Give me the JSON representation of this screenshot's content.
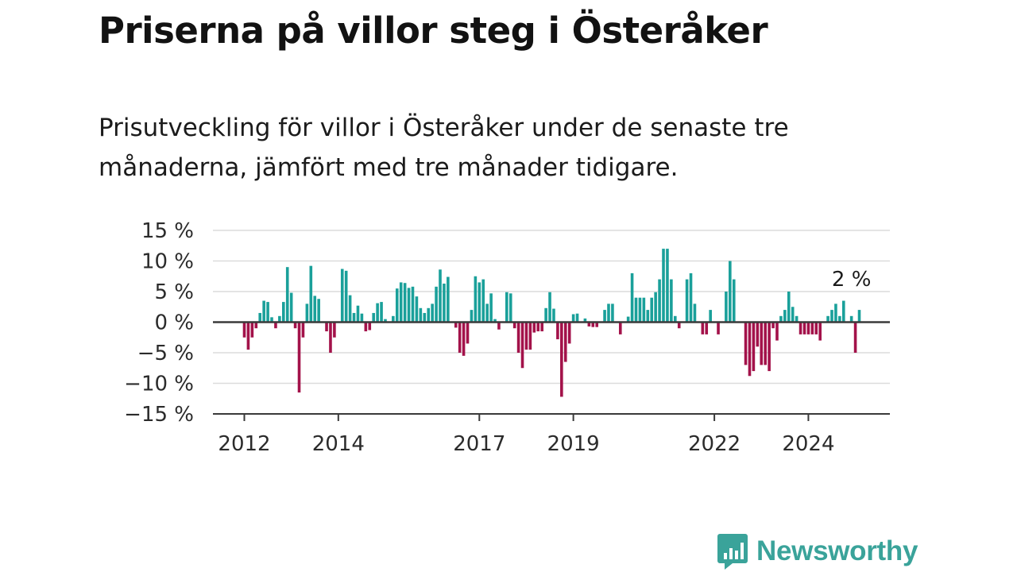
{
  "header": {
    "title": "Priserna på villor steg i Österåker",
    "subtitle": "Prisutveckling för villor i Österåker under de senaste tre månaderna, jämfört med tre månader tidigare."
  },
  "brand": {
    "name": "Newsworthy",
    "icon": "newsworthy-chat-bars-icon",
    "color": "#3aa39a"
  },
  "chart_data": {
    "type": "bar",
    "title": "",
    "xlabel": "",
    "ylabel": "",
    "ylim": [
      -15,
      15
    ],
    "y_ticks": [
      15,
      10,
      5,
      0,
      -5,
      -10,
      -15
    ],
    "y_tick_labels": [
      "15 %",
      "10 %",
      "5 %",
      "0 %",
      "−5 %",
      "−10 %",
      "−15 %"
    ],
    "x_ticks": [
      {
        "label": "2012",
        "index": 0
      },
      {
        "label": "2014",
        "index": 24
      },
      {
        "label": "2017",
        "index": 60
      },
      {
        "label": "2019",
        "index": 84
      },
      {
        "label": "2022",
        "index": 120
      },
      {
        "label": "2024",
        "index": 144
      }
    ],
    "x_start": "2012-01",
    "frequency": "monthly",
    "grid": true,
    "positive_color": "#1aa09a",
    "negative_color": "#a3124a",
    "annotation": {
      "text": "2 %",
      "index": 155
    },
    "values": [
      -2.5,
      -4.5,
      -2.5,
      -1,
      1.5,
      3.5,
      3.3,
      0.8,
      -1,
      1,
      3.3,
      9,
      4.8,
      -1,
      -11.5,
      -2.5,
      3,
      9.2,
      4.3,
      3.8,
      0,
      -1.5,
      -5,
      -2.5,
      0,
      8.7,
      8.4,
      4.4,
      1.5,
      2.7,
      1.4,
      -1.5,
      -1.3,
      1.5,
      3.1,
      3.3,
      0.5,
      0,
      1,
      5.5,
      6.5,
      6.4,
      5.6,
      5.8,
      4.2,
      2.3,
      1.5,
      2.3,
      3,
      5.8,
      8.6,
      6.3,
      7.4,
      0,
      -0.9,
      -5,
      -5.5,
      -3.5,
      2,
      7.5,
      6.5,
      7,
      3,
      4.7,
      0.5,
      -1.2,
      0,
      4.9,
      4.7,
      -1,
      -5,
      -7.5,
      -4.5,
      -4.5,
      -1.7,
      -1.5,
      -1.5,
      2.3,
      4.9,
      2.2,
      -2.8,
      -12.2,
      -6.5,
      -3.5,
      1.3,
      1.4,
      0,
      0.6,
      -0.7,
      -0.8,
      -0.8,
      0,
      2,
      3,
      3,
      0,
      -2,
      0,
      0.9,
      8,
      4,
      4,
      4,
      2,
      4,
      4.9,
      7,
      12,
      12,
      7,
      1,
      -1,
      0,
      7,
      8,
      3,
      0,
      -2,
      -2,
      2,
      0,
      -2,
      0,
      5,
      10,
      7,
      0,
      0,
      -7,
      -8.8,
      -8,
      -4,
      -7,
      -7,
      -8,
      -1,
      -3,
      1,
      2,
      5,
      2.5,
      1,
      -2,
      -2,
      -2,
      -2,
      -2,
      -3,
      0,
      1,
      2,
      3,
      1,
      3.5,
      0,
      1,
      -5,
      2
    ]
  }
}
